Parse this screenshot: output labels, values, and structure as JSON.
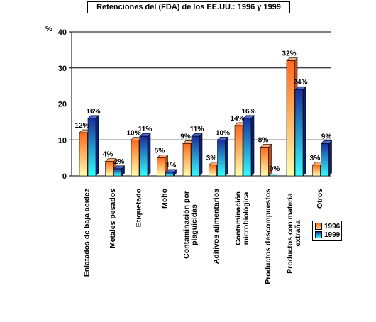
{
  "chart_data": {
    "type": "bar",
    "title": "Retenciones del (FDA) de los EE.UU.:  1996 y 1999",
    "ylabel": "%",
    "ylim": [
      0,
      40
    ],
    "yticks": [
      0,
      10,
      20,
      30,
      40
    ],
    "grid": true,
    "legend_position": "bottom-right",
    "categories": [
      "Enlatados de baja acidez",
      "Metales pesados",
      "Etiquetado",
      "Moho",
      "Contaminación por plaguicidas",
      "Aditivos alimentarios",
      "Contaminación microbiológica",
      "Productos descompuestos",
      "Productos con materia extraña",
      "Otros"
    ],
    "series": [
      {
        "name": "1996",
        "values": [
          12,
          4,
          10,
          5,
          9,
          3,
          14,
          8,
          32,
          3
        ],
        "labels": [
          "12%",
          "4%",
          "10%",
          "5%",
          "9%",
          "3%",
          "14%",
          "8%",
          "32%",
          "3%"
        ],
        "color": "#ff8040"
      },
      {
        "name": "1999",
        "values": [
          16,
          2,
          11,
          1,
          11,
          10,
          16,
          0,
          24,
          9
        ],
        "labels": [
          "16%",
          "2%",
          "11%",
          "1%",
          "11%",
          "10%",
          "16%",
          "0%",
          "24%",
          "9%"
        ],
        "color": "#1a3fa0"
      }
    ]
  }
}
